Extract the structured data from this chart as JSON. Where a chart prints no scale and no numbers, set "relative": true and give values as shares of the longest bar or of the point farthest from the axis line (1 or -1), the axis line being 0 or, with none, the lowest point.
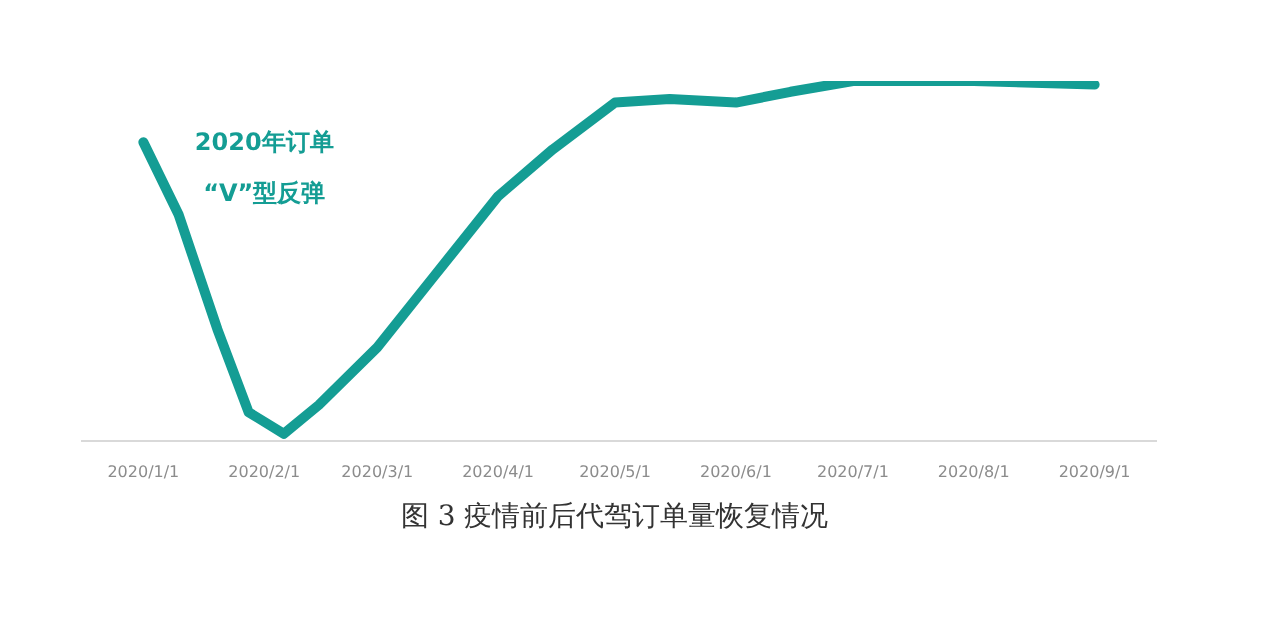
{
  "chart_data": {
    "type": "line",
    "relative": true,
    "x": [
      "2020-01-01",
      "2020-01-10",
      "2020-01-20",
      "2020-01-28",
      "2020-02-06",
      "2020-02-15",
      "2020-03-01",
      "2020-03-15",
      "2020-04-01",
      "2020-04-15",
      "2020-05-01",
      "2020-05-15",
      "2020-06-01",
      "2020-06-15",
      "2020-07-01",
      "2020-08-01",
      "2020-09-01"
    ],
    "series": [
      {
        "color": "#149d94",
        "values": [
          0.83,
          0.63,
          0.31,
          0.08,
          0.02,
          0.1,
          0.26,
          0.45,
          0.68,
          0.81,
          0.94,
          0.95,
          0.94,
          0.97,
          1,
          1,
          0.99
        ]
      }
    ],
    "xlim": [
      "2019-12-16",
      "2020-09-17"
    ],
    "xticks": [
      {
        "value": "2020-01-01",
        "label": "2020/1/1"
      },
      {
        "value": "2020-02-01",
        "label": "2020/2/1"
      },
      {
        "value": "2020-03-01",
        "label": "2020/3/1"
      },
      {
        "value": "2020-04-01",
        "label": "2020/4/1"
      },
      {
        "value": "2020-05-01",
        "label": "2020/5/1"
      },
      {
        "value": "2020-06-01",
        "label": "2020/6/1"
      },
      {
        "value": "2020-07-01",
        "label": "2020/7/1"
      },
      {
        "value": "2020-08-01",
        "label": "2020/8/1"
      },
      {
        "value": "2020-09-01",
        "label": "2020/9/1"
      }
    ],
    "grid": false,
    "marker": "none",
    "line_style": "solid",
    "annotations": [
      "2020年订单\n“V”型反弹",
      "图 3  疫情前后代驾订单量恢复情况"
    ]
  }
}
